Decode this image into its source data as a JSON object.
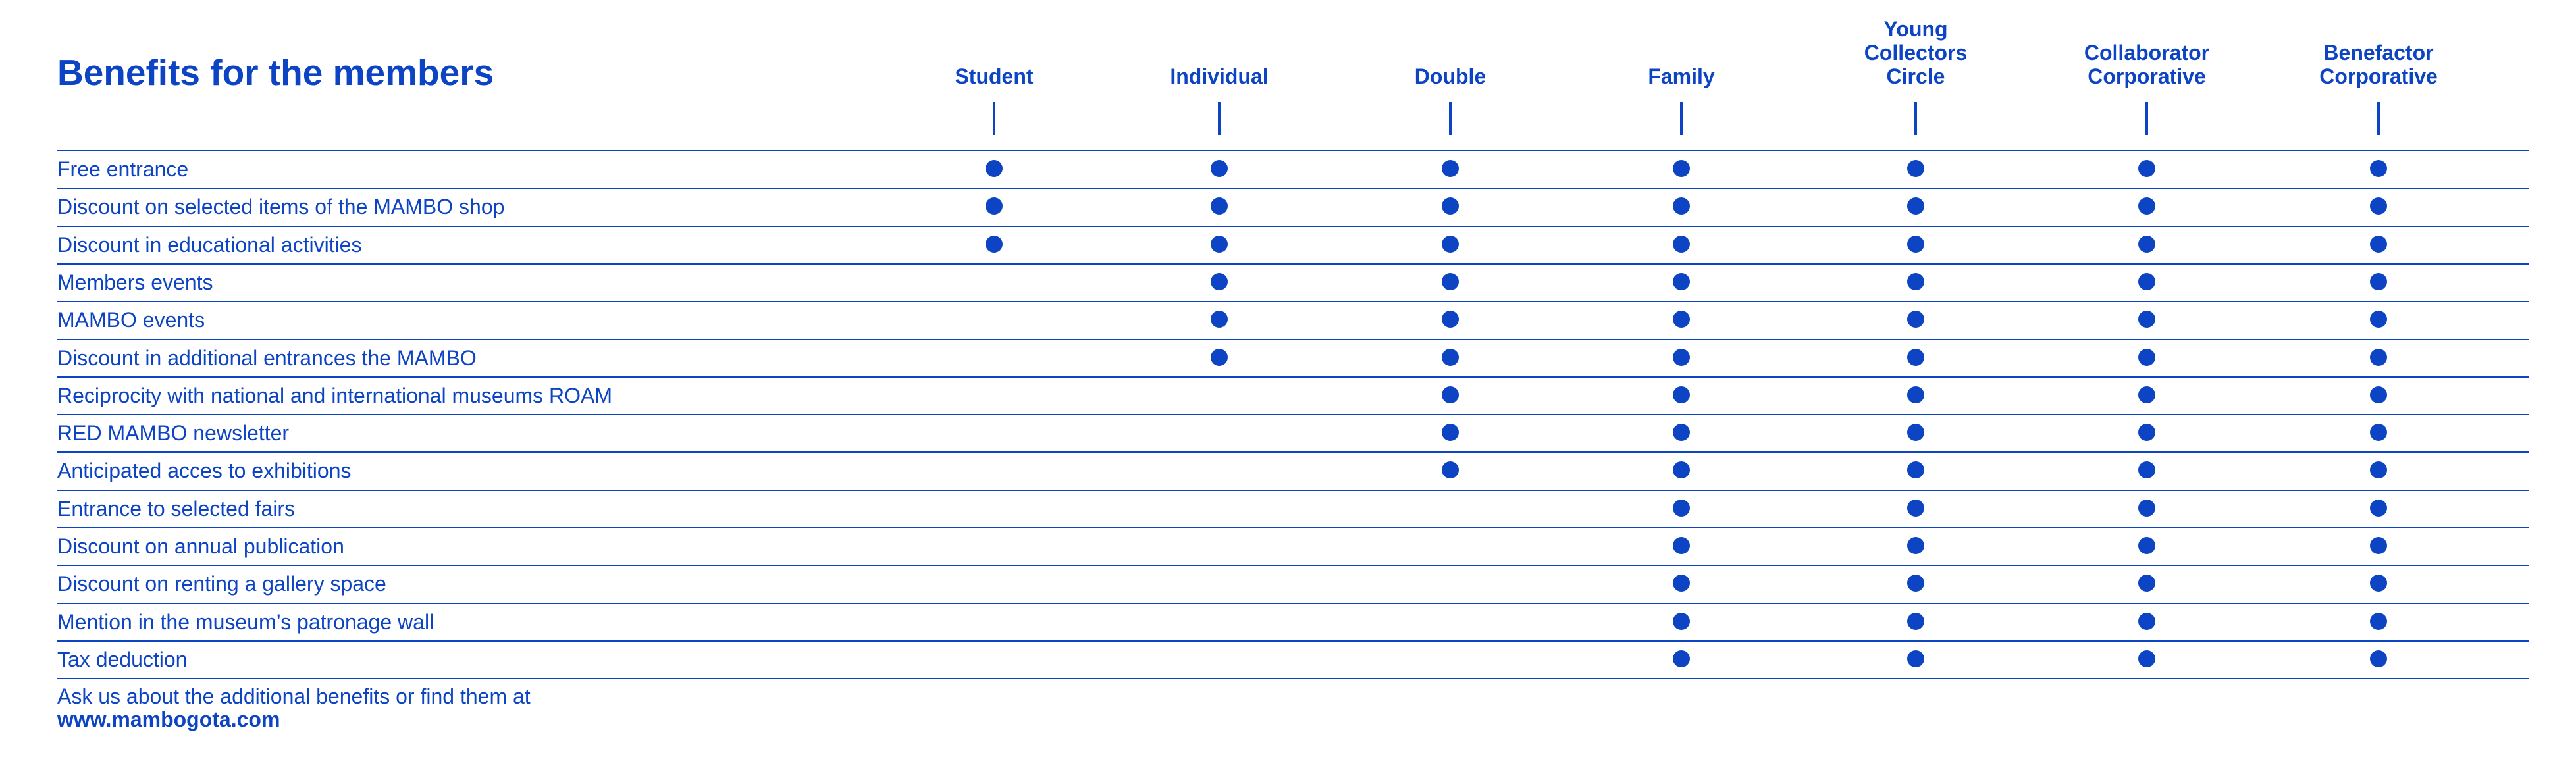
{
  "title": "Benefits for the members",
  "columns": [
    {
      "id": "student",
      "label": "Student"
    },
    {
      "id": "individual",
      "label": "Individual"
    },
    {
      "id": "double",
      "label": "Double"
    },
    {
      "id": "family",
      "label": "Family"
    },
    {
      "id": "young-collectors-circle",
      "label": "Young\nCollectors\nCircle"
    },
    {
      "id": "collaborator-corporative",
      "label": "Collaborator\nCorporative"
    },
    {
      "id": "benefactor-corporative",
      "label": "Benefactor\nCorporative"
    }
  ],
  "rows": [
    {
      "label": "Free entrance",
      "included": [
        true,
        true,
        true,
        true,
        true,
        true,
        true
      ]
    },
    {
      "label": "Discount on selected items of the MAMBO shop",
      "included": [
        true,
        true,
        true,
        true,
        true,
        true,
        true
      ]
    },
    {
      "label": "Discount in educational activities",
      "included": [
        true,
        true,
        true,
        true,
        true,
        true,
        true
      ]
    },
    {
      "label": "Members events",
      "included": [
        false,
        true,
        true,
        true,
        true,
        true,
        true
      ]
    },
    {
      "label": "MAMBO events",
      "included": [
        false,
        true,
        true,
        true,
        true,
        true,
        true
      ]
    },
    {
      "label": "Discount in additional entrances the MAMBO",
      "included": [
        false,
        true,
        true,
        true,
        true,
        true,
        true
      ]
    },
    {
      "label": "Reciprocity with national and international museums ROAM",
      "included": [
        false,
        false,
        true,
        true,
        true,
        true,
        true
      ]
    },
    {
      "label": "RED MAMBO newsletter",
      "included": [
        false,
        false,
        true,
        true,
        true,
        true,
        true
      ]
    },
    {
      "label": "Anticipated acces to exhibitions",
      "included": [
        false,
        false,
        true,
        true,
        true,
        true,
        true
      ]
    },
    {
      "label": "Entrance to selected fairs",
      "included": [
        false,
        false,
        false,
        true,
        true,
        true,
        true
      ]
    },
    {
      "label": "Discount on annual publication",
      "included": [
        false,
        false,
        false,
        true,
        true,
        true,
        true
      ]
    },
    {
      "label": "Discount on renting a gallery space",
      "included": [
        false,
        false,
        false,
        true,
        true,
        true,
        true
      ]
    },
    {
      "label": "Mention in the museum’s patronage wall",
      "included": [
        false,
        false,
        false,
        true,
        true,
        true,
        true
      ]
    },
    {
      "label": "Tax deduction",
      "included": [
        false,
        false,
        false,
        true,
        true,
        true,
        true
      ]
    }
  ],
  "footer": {
    "note": "Ask us about the additional benefits or find them at",
    "link": "www.mambogota.com"
  },
  "colors": {
    "accent": "#0c44c4",
    "background": "#ffffff"
  }
}
